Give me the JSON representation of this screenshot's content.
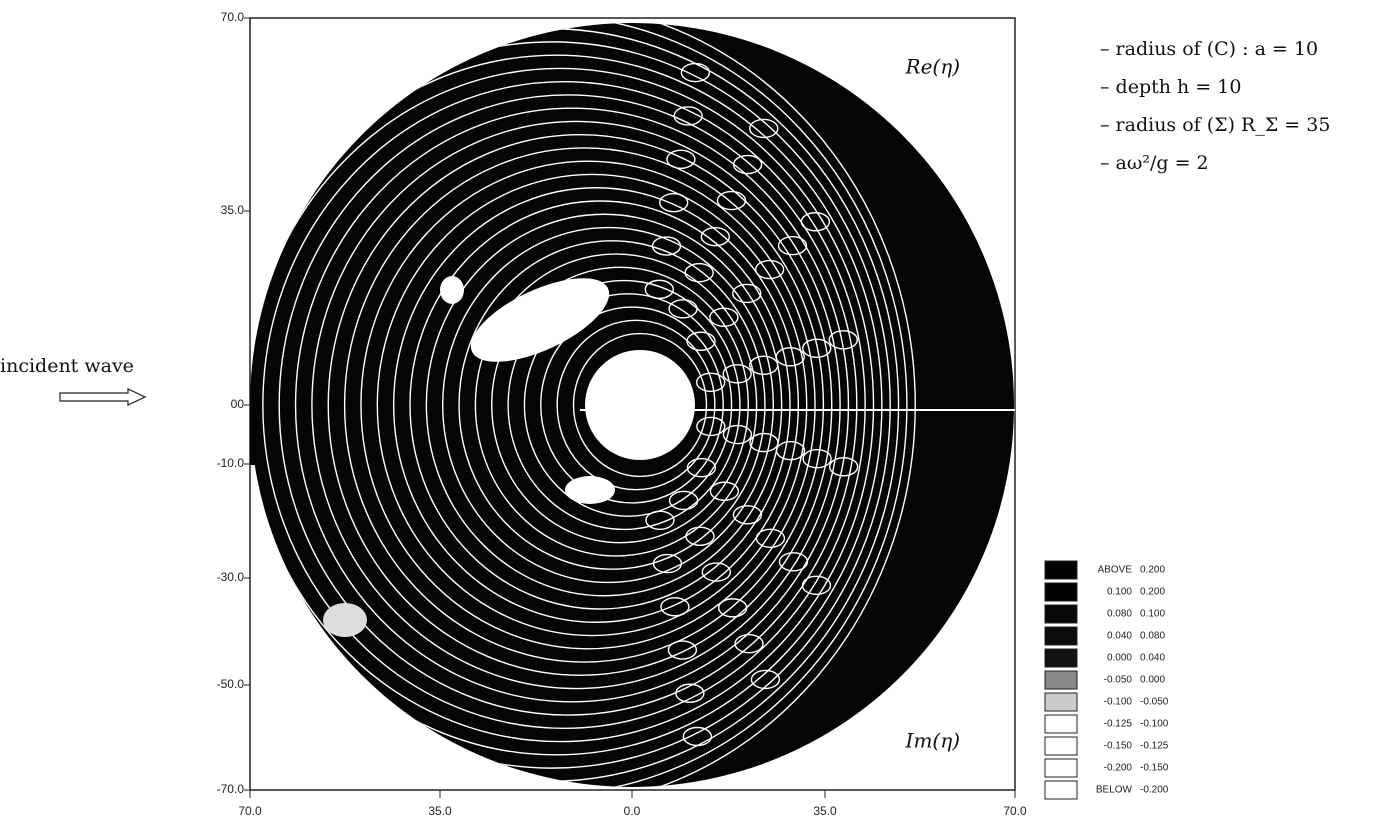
{
  "figure": {
    "labels": {
      "top": "Re(η)",
      "bottom": "Im(η)"
    },
    "yticks": [
      "70.0",
      "35.0",
      "00",
      "-10.0",
      "-30.0",
      "-50.0",
      "-70.0"
    ],
    "xticks": [
      "70.0",
      "35.0",
      "0.0",
      "35.0",
      "70.0"
    ],
    "incident": "incident wave",
    "notes": [
      "– radius of (C) : a = 10",
      "– depth h = 10",
      "– radius of (Σ) R_Σ = 35",
      "– aω²/g = 2"
    ],
    "legend": [
      [
        "ABOVE",
        "0.200"
      ],
      [
        "0.100",
        "0.200"
      ],
      [
        "0.080",
        "0.100"
      ],
      [
        "0.040",
        "0.080"
      ],
      [
        "0.000",
        "0.040"
      ],
      [
        "-0.050",
        "0.000"
      ],
      [
        "-0.100",
        "-0.050"
      ],
      [
        "-0.125",
        "-0.100"
      ],
      [
        "-0.150",
        "-0.125"
      ],
      [
        "-0.200",
        "-0.150"
      ],
      [
        "BELOW",
        "-0.200"
      ]
    ]
  }
}
